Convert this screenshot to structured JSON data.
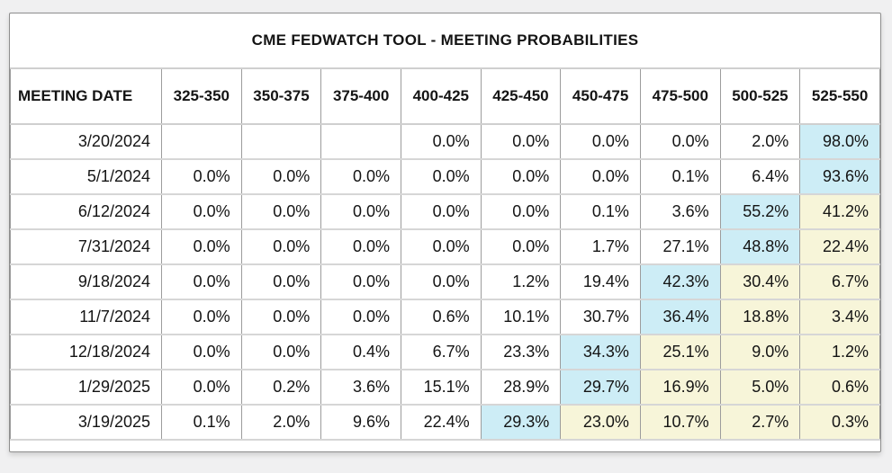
{
  "title": "CME FEDWATCH TOOL - MEETING PROBABILITIES",
  "colors": {
    "highlight_blue": "#cdedf6",
    "highlight_yellow": "#f7f5d9",
    "border_gray": "#9c9c9c",
    "page_background": "#f0f0f1"
  },
  "table": {
    "date_header": "MEETING DATE",
    "rate_headers": [
      "325-350",
      "350-375",
      "375-400",
      "400-425",
      "425-450",
      "450-475",
      "475-500",
      "500-525",
      "525-550"
    ],
    "rows": [
      {
        "date": "3/20/2024",
        "values": [
          "",
          "",
          "",
          "0.0%",
          "0.0%",
          "0.0%",
          "0.0%",
          "2.0%",
          "98.0%"
        ],
        "highlights": [
          "none",
          "none",
          "none",
          "none",
          "none",
          "none",
          "none",
          "none",
          "blue"
        ]
      },
      {
        "date": "5/1/2024",
        "values": [
          "0.0%",
          "0.0%",
          "0.0%",
          "0.0%",
          "0.0%",
          "0.0%",
          "0.1%",
          "6.4%",
          "93.6%"
        ],
        "highlights": [
          "none",
          "none",
          "none",
          "none",
          "none",
          "none",
          "none",
          "none",
          "blue"
        ]
      },
      {
        "date": "6/12/2024",
        "values": [
          "0.0%",
          "0.0%",
          "0.0%",
          "0.0%",
          "0.0%",
          "0.1%",
          "3.6%",
          "55.2%",
          "41.2%"
        ],
        "highlights": [
          "none",
          "none",
          "none",
          "none",
          "none",
          "none",
          "none",
          "blue",
          "yellow"
        ]
      },
      {
        "date": "7/31/2024",
        "values": [
          "0.0%",
          "0.0%",
          "0.0%",
          "0.0%",
          "0.0%",
          "1.7%",
          "27.1%",
          "48.8%",
          "22.4%"
        ],
        "highlights": [
          "none",
          "none",
          "none",
          "none",
          "none",
          "none",
          "none",
          "blue",
          "yellow"
        ]
      },
      {
        "date": "9/18/2024",
        "values": [
          "0.0%",
          "0.0%",
          "0.0%",
          "0.0%",
          "1.2%",
          "19.4%",
          "42.3%",
          "30.4%",
          "6.7%"
        ],
        "highlights": [
          "none",
          "none",
          "none",
          "none",
          "none",
          "none",
          "blue",
          "yellow",
          "yellow"
        ]
      },
      {
        "date": "11/7/2024",
        "values": [
          "0.0%",
          "0.0%",
          "0.0%",
          "0.6%",
          "10.1%",
          "30.7%",
          "36.4%",
          "18.8%",
          "3.4%"
        ],
        "highlights": [
          "none",
          "none",
          "none",
          "none",
          "none",
          "none",
          "blue",
          "yellow",
          "yellow"
        ]
      },
      {
        "date": "12/18/2024",
        "values": [
          "0.0%",
          "0.0%",
          "0.4%",
          "6.7%",
          "23.3%",
          "34.3%",
          "25.1%",
          "9.0%",
          "1.2%"
        ],
        "highlights": [
          "none",
          "none",
          "none",
          "none",
          "none",
          "blue",
          "yellow",
          "yellow",
          "yellow"
        ]
      },
      {
        "date": "1/29/2025",
        "values": [
          "0.0%",
          "0.2%",
          "3.6%",
          "15.1%",
          "28.9%",
          "29.7%",
          "16.9%",
          "5.0%",
          "0.6%"
        ],
        "highlights": [
          "none",
          "none",
          "none",
          "none",
          "none",
          "blue",
          "yellow",
          "yellow",
          "yellow"
        ]
      },
      {
        "date": "3/19/2025",
        "values": [
          "0.1%",
          "2.0%",
          "9.6%",
          "22.4%",
          "29.3%",
          "23.0%",
          "10.7%",
          "2.7%",
          "0.3%"
        ],
        "highlights": [
          "none",
          "none",
          "none",
          "none",
          "blue",
          "yellow",
          "yellow",
          "yellow",
          "yellow"
        ]
      }
    ]
  }
}
